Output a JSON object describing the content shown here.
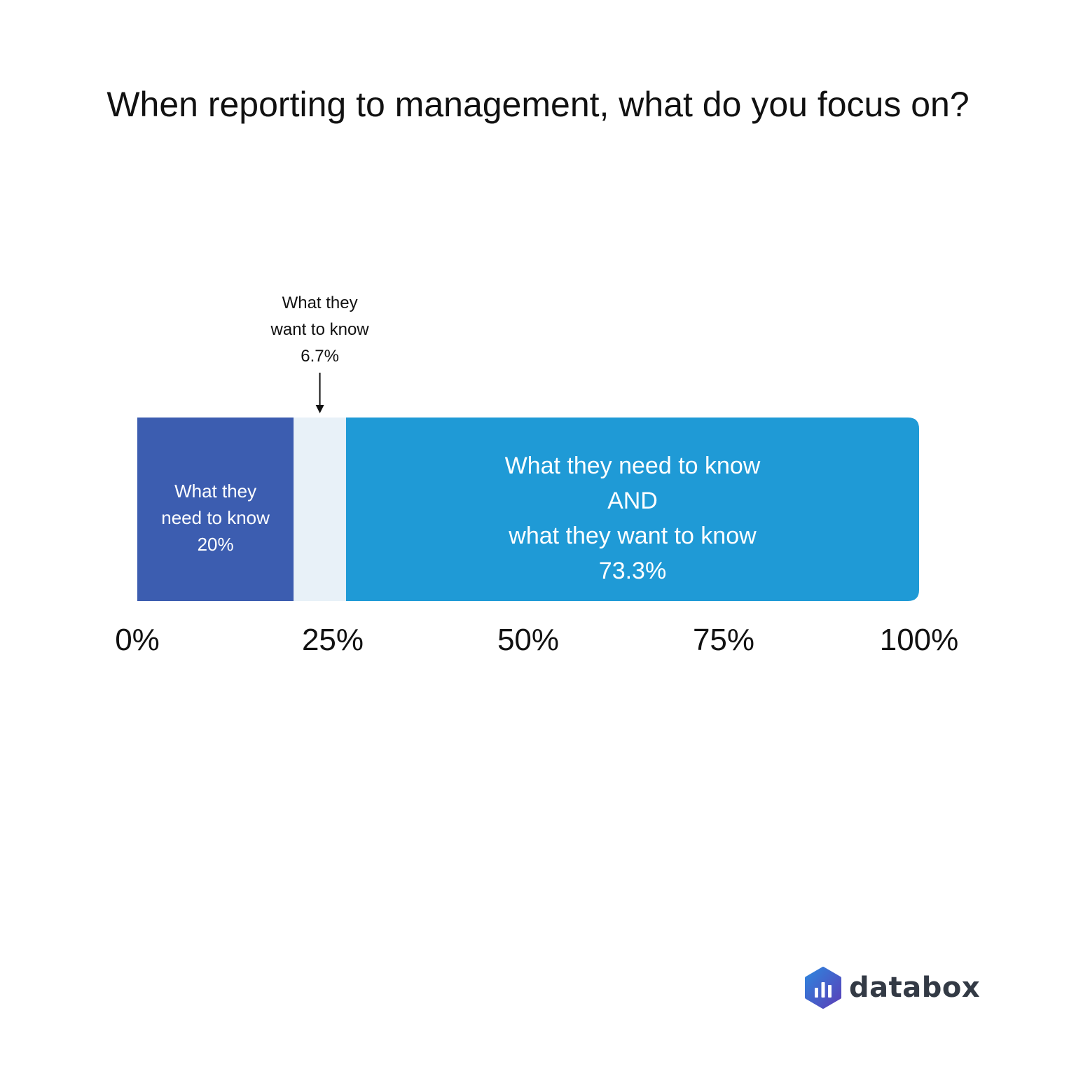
{
  "chart_data": {
    "type": "bar",
    "orientation": "horizontal-stacked",
    "title": "When reporting to management, what do you focus on?",
    "xlim": [
      0,
      100
    ],
    "ticks": [
      "0%",
      "25%",
      "50%",
      "75%",
      "100%"
    ],
    "tick_values": [
      0,
      25,
      50,
      75,
      100
    ],
    "segments": [
      {
        "value": 20,
        "label_lines": [
          "What they",
          "need to know",
          "20%"
        ],
        "color": "#3c5db0",
        "label_color": "#ffffff",
        "label_position": "inside"
      },
      {
        "value": 6.7,
        "label_lines": [
          "What they",
          "want to know",
          "6.7%"
        ],
        "color": "#e8f1f8",
        "label_color": "#111111",
        "label_position": "above-arrow"
      },
      {
        "value": 73.3,
        "label_lines": [
          "What they need to know",
          "AND",
          "what they want to know",
          "73.3%"
        ],
        "color": "#1f9ad6",
        "label_color": "#ffffff",
        "label_position": "inside"
      }
    ]
  },
  "brand": {
    "name": "databox",
    "logo_icon": "databox-hexagon-icon"
  }
}
